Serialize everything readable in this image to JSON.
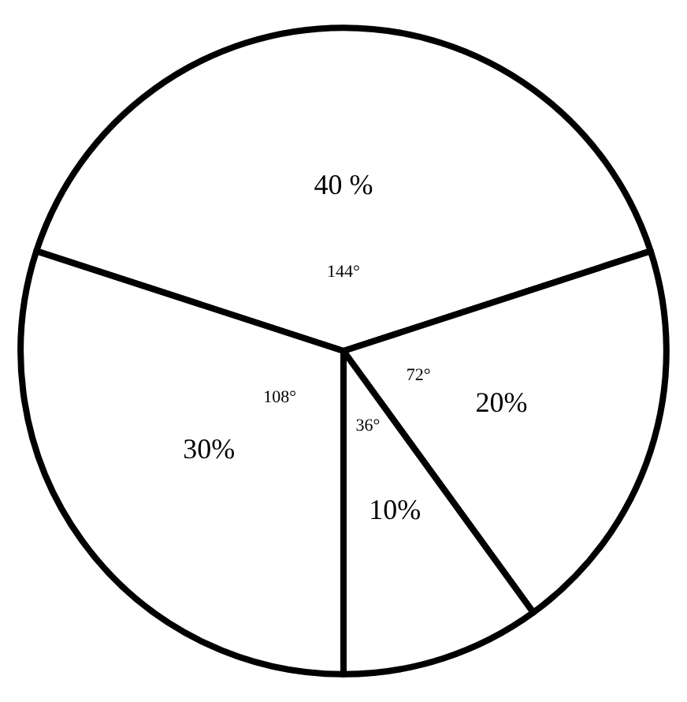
{
  "chart_data": {
    "type": "pie",
    "categories": [
      null,
      null,
      null,
      null
    ],
    "values": [
      40,
      20,
      10,
      30
    ],
    "colors": [
      "#ffffff",
      "#ffffff",
      "#ffffff",
      "#ffffff"
    ],
    "value_labels": [
      "40 %",
      "20%",
      "10%",
      "30%"
    ],
    "annotations": [
      "144°",
      "72°",
      "36°",
      "108°"
    ]
  }
}
